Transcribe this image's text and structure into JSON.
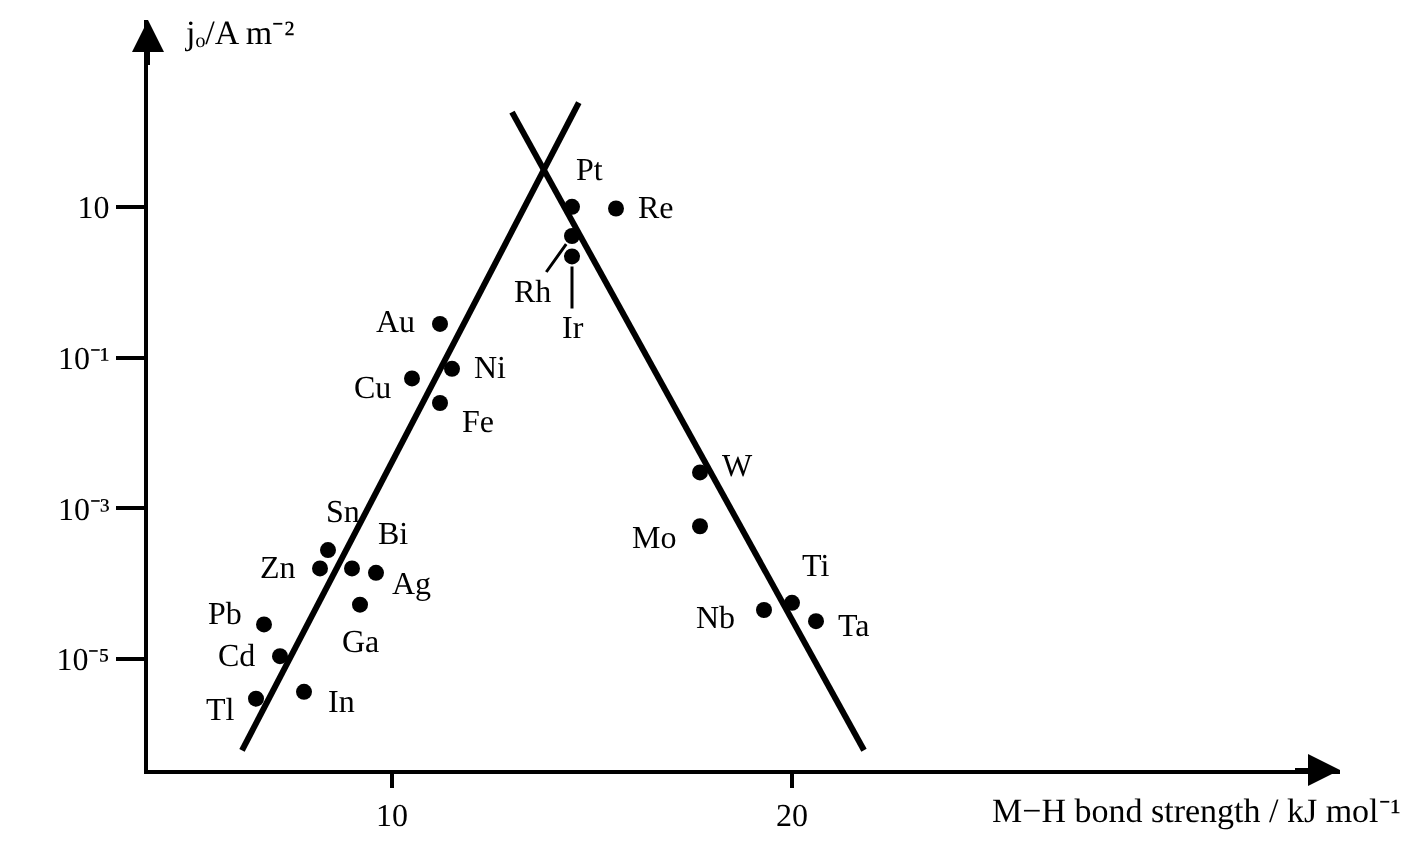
{
  "chart_data": {
    "type": "scatter",
    "xlabel": "M−H bond strength / kJ mol⁻¹",
    "ylabel": "jₒ/A m⁻²",
    "log": "y",
    "xlim": [
      3.9,
      33.7
    ],
    "ylim": [
      3.4e-07,
      3000
    ],
    "xticks": [
      10,
      20
    ],
    "yticks": [
      {
        "value": 10,
        "label": "10"
      },
      {
        "value": 0.1,
        "label": "10⁻¹"
      },
      {
        "value": 0.001,
        "label": "10⁻³"
      },
      {
        "value": 1e-05,
        "label": "10⁻⁵"
      }
    ],
    "grid": false,
    "series": [
      {
        "color": "#000000",
        "marker": "circle",
        "x": [
          14.5,
          15.6,
          14.5,
          14.5,
          11.2,
          11.5,
          10.5,
          11.2,
          8.4,
          8.2,
          9.0,
          9.6,
          9.2,
          6.8,
          7.2,
          6.6,
          7.8,
          17.7,
          17.7,
          20.0,
          19.3,
          20.6
        ],
        "values": [
          10,
          9.5,
          4.1,
          2.2,
          0.28,
          0.071,
          0.053,
          0.025,
          0.00028,
          0.00016,
          0.00016,
          0.00014,
          5.3e-05,
          2.9e-05,
          1.1e-05,
          3e-06,
          3.7e-06,
          0.003,
          0.00058,
          5.6e-05,
          4.5e-05,
          3.2e-05
        ]
      },
      {
        "type": "line",
        "color": "#000000",
        "line_style": "solid",
        "x": [
          6.25,
          14.67
        ],
        "values": [
          6.2e-07,
          240
        ]
      },
      {
        "type": "line",
        "color": "#000000",
        "line_style": "solid",
        "x": [
          13.0,
          21.8
        ],
        "values": [
          180,
          6.2e-07
        ]
      }
    ],
    "annotations": [
      {
        "text": "Pt",
        "x": 14.5,
        "y": 10
      },
      {
        "text": "Re",
        "x": 15.6,
        "y": 9.5
      },
      {
        "text": "Rh",
        "x": 14.5,
        "y": 4.1
      },
      {
        "text": "Ir",
        "x": 14.5,
        "y": 2.2
      },
      {
        "text": "Au",
        "x": 11.2,
        "y": 0.28
      },
      {
        "text": "Ni",
        "x": 11.5,
        "y": 0.071
      },
      {
        "text": "Cu",
        "x": 10.5,
        "y": 0.053
      },
      {
        "text": "Fe",
        "x": 11.2,
        "y": 0.025
      },
      {
        "text": "Sn",
        "x": 8.4,
        "y": 0.00028
      },
      {
        "text": "Zn",
        "x": 8.2,
        "y": 0.00016
      },
      {
        "text": "Bi",
        "x": 9.0,
        "y": 0.00016
      },
      {
        "text": "Ag",
        "x": 9.6,
        "y": 0.00014
      },
      {
        "text": "Ga",
        "x": 9.2,
        "y": 5.3e-05
      },
      {
        "text": "Pb",
        "x": 6.8,
        "y": 2.9e-05
      },
      {
        "text": "Cd",
        "x": 7.2,
        "y": 1.1e-05
      },
      {
        "text": "Tl",
        "x": 6.6,
        "y": 3e-06
      },
      {
        "text": "In",
        "x": 7.8,
        "y": 3.7e-06
      },
      {
        "text": "W",
        "x": 17.7,
        "y": 0.003
      },
      {
        "text": "Mo",
        "x": 17.7,
        "y": 0.00058
      },
      {
        "text": "Ti",
        "x": 20.0,
        "y": 5.6e-05
      },
      {
        "text": "Nb",
        "x": 19.3,
        "y": 4.5e-05
      },
      {
        "text": "Ta",
        "x": 20.6,
        "y": 3.2e-05
      }
    ]
  }
}
